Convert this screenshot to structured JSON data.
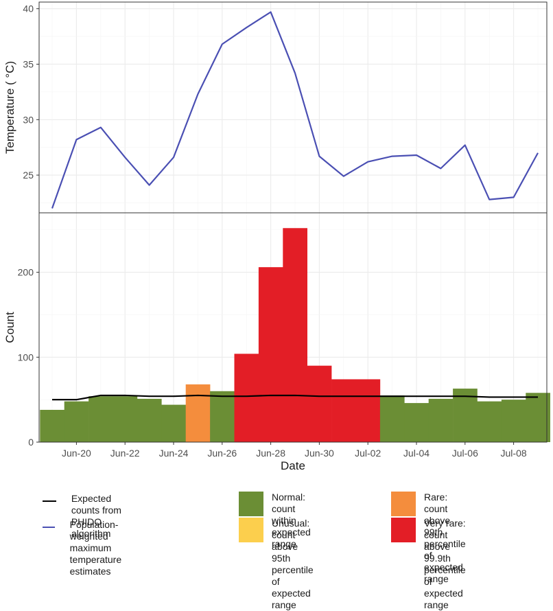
{
  "chart_data": [
    {
      "type": "line",
      "title": "",
      "xlabel": "",
      "ylabel": "Temperature ( °C)",
      "ylim": [
        21.6,
        40.6
      ],
      "yticks": [
        25,
        30,
        35,
        40
      ],
      "series": [
        {
          "name": "Population-weighted maximum temperature estimates",
          "color": "#4a4fb3",
          "x": [
            "Jun-19",
            "Jun-20",
            "Jun-21",
            "Jun-22",
            "Jun-23",
            "Jun-24",
            "Jun-25",
            "Jun-26",
            "Jun-27",
            "Jun-28",
            "Jun-29",
            "Jun-30",
            "Jul-01",
            "Jul-02",
            "Jul-03",
            "Jul-04",
            "Jul-05",
            "Jul-06",
            "Jul-07",
            "Jul-08",
            "Jul-09"
          ],
          "values": [
            22.0,
            28.2,
            29.3,
            26.6,
            24.1,
            26.6,
            32.3,
            36.8,
            38.3,
            39.7,
            34.2,
            26.7,
            24.9,
            26.2,
            26.7,
            26.8,
            25.6,
            27.7,
            22.8,
            23.0,
            27.0
          ]
        }
      ]
    },
    {
      "type": "bar",
      "title": "",
      "xlabel": "Date",
      "ylabel": "Count",
      "ylim": [
        0,
        270
      ],
      "yticks": [
        0,
        100,
        200
      ],
      "xtick_labels": [
        "Jun-20",
        "Jun-22",
        "Jun-24",
        "Jun-26",
        "Jun-28",
        "Jun-30",
        "Jul-02",
        "Jul-04",
        "Jul-06",
        "Jul-08"
      ],
      "categories": [
        "Jun-19",
        "Jun-20",
        "Jun-21",
        "Jun-22",
        "Jun-23",
        "Jun-24",
        "Jun-25",
        "Jun-26",
        "Jun-27",
        "Jun-28",
        "Jun-29",
        "Jun-30",
        "Jul-01",
        "Jul-02",
        "Jul-03",
        "Jul-04",
        "Jul-05",
        "Jul-06",
        "Jul-07",
        "Jul-08",
        "Jul-09"
      ],
      "values": [
        38,
        48,
        54,
        54,
        51,
        44,
        68,
        60,
        104,
        206,
        252,
        90,
        74,
        74,
        55,
        46,
        51,
        63,
        48,
        50,
        58
      ],
      "status": [
        "normal",
        "normal",
        "normal",
        "normal",
        "normal",
        "normal",
        "rare",
        "normal",
        "very_rare",
        "very_rare",
        "very_rare",
        "very_rare",
        "very_rare",
        "very_rare",
        "normal",
        "normal",
        "normal",
        "normal",
        "normal",
        "normal",
        "normal"
      ],
      "expected": {
        "name": "Expected counts from PHIDO algorithm",
        "color": "#000000",
        "values": [
          50,
          50,
          55,
          55,
          54,
          54,
          55,
          54,
          54,
          55,
          55,
          54,
          54,
          54,
          54,
          54,
          54,
          54,
          53,
          53,
          53
        ]
      },
      "status_colors": {
        "normal": "#6b8e35",
        "unusual": "#fccf4d",
        "rare": "#f48d3d",
        "very_rare": "#e31e26"
      }
    }
  ],
  "legend": {
    "expected": "Expected counts from\nPHIDO algorithm",
    "temperature": "Population-weighted maximum\ntemperature estimates",
    "normal": "Normal: count within\nexpected range",
    "unusual": "Unusual: count above 95th\npercentile of expected range",
    "rare": "Rare: count above 99th\npercentile of expected range",
    "very_rare": "Very rare: count above 99.9th\npercentile of expected range"
  },
  "colors": {
    "temperature_line": "#4a4fb3",
    "expected_line": "#000000",
    "normal": "#6b8e35",
    "unusual": "#fccf4d",
    "rare": "#f48d3d",
    "very_rare": "#e31e26"
  }
}
